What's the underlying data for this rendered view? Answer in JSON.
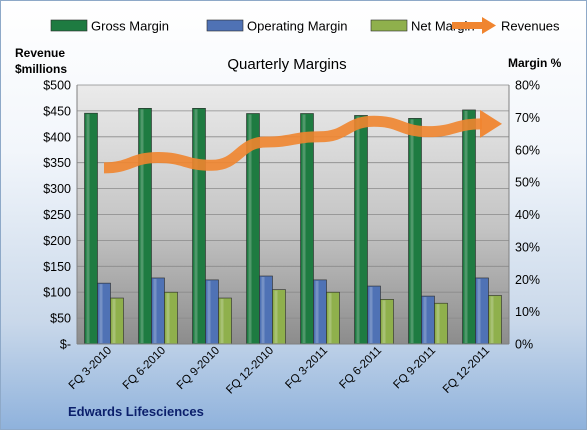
{
  "chart_data": {
    "type": "bar",
    "title": "Quarterly Margins",
    "left_axis_title_line1": "Revenue",
    "left_axis_title_line2": "$millions",
    "right_axis_title": "Margin %",
    "footer": "Edwards Lifesciences",
    "categories": [
      "FQ 3-2010",
      "FQ 6-2010",
      "FQ 9-2010",
      "FQ 12-2010",
      "FQ 3-2011",
      "FQ 6-2011",
      "FQ 9-2011",
      "FQ 12-2011"
    ],
    "left_ticks": [
      "$-",
      "$50",
      "$100",
      "$150",
      "$200",
      "$250",
      "$300",
      "$350",
      "$400",
      "$450",
      "$500"
    ],
    "right_ticks": [
      "0%",
      "10%",
      "20%",
      "30%",
      "40%",
      "50%",
      "60%",
      "70%",
      "80%"
    ],
    "ylim_left": [
      0,
      500
    ],
    "ylim_right": [
      0,
      80
    ],
    "grid": true,
    "legend_position": "top",
    "series": [
      {
        "name": "Gross Margin",
        "axis": "right",
        "kind": "bar",
        "color": "#1e7b41",
        "values": [
          71.3,
          72.8,
          72.8,
          71.2,
          71.2,
          70.6,
          69.7,
          72.3
        ]
      },
      {
        "name": "Operating Margin",
        "axis": "right",
        "kind": "bar",
        "color": "#4f72b5",
        "values": [
          18.8,
          20.4,
          19.8,
          21.0,
          19.8,
          17.9,
          14.8,
          20.4
        ]
      },
      {
        "name": "Net Margin",
        "axis": "right",
        "kind": "bar",
        "color": "#8fb04c",
        "values": [
          14.2,
          16.0,
          14.2,
          16.8,
          16.0,
          13.8,
          12.6,
          15.0
        ]
      },
      {
        "name": "Revenues",
        "axis": "left",
        "kind": "line",
        "color": "#f0852f",
        "values": [
          340,
          360,
          345,
          390,
          400,
          430,
          410,
          425
        ]
      }
    ]
  }
}
